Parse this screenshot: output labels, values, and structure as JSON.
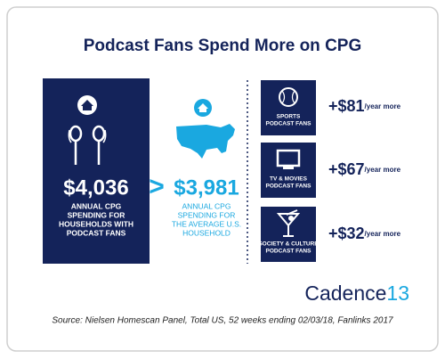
{
  "title": "Podcast Fans Spend More on CPG",
  "podcast_households": {
    "amount": "$4,036",
    "description": [
      "ANNUAL CPG",
      "SPENDING FOR",
      "HOUSEHOLDS WITH",
      "PODCAST FANS"
    ]
  },
  "comparison": ">",
  "average_households": {
    "amount": "$3,981",
    "description": [
      "ANNUAL CPG",
      "SPENDING FOR",
      "THE AVERAGE U.S.",
      "HOUSEHOLD"
    ]
  },
  "segments": [
    {
      "label": [
        "SPORTS",
        "PODCAST FANS"
      ],
      "amount": "+$81",
      "unit": "/year more"
    },
    {
      "label": [
        "TV & MOVIES",
        "PODCAST FANS"
      ],
      "amount": "+$67",
      "unit": "/year more"
    },
    {
      "label": [
        "SOCIETY & CULTURE",
        "PODCAST FANS"
      ],
      "amount": "+$32",
      "unit": "/year more"
    }
  ],
  "logo": [
    "Cadence",
    "13"
  ],
  "source": "Source: Nielsen Homescan Panel, Total US, 52 weeks ending 02/03/18, Fanlinks 2017"
}
